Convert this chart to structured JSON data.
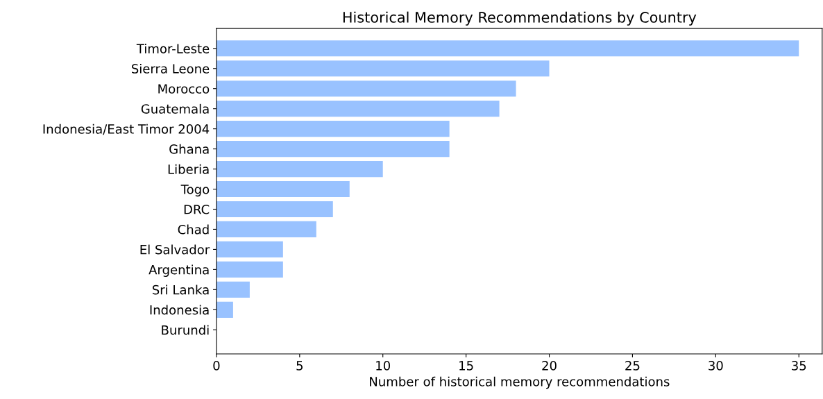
{
  "chart_data": {
    "type": "bar",
    "orientation": "horizontal",
    "title": "Historical Memory Recommendations by Country",
    "xlabel": "Number of historical memory recommendations",
    "categories": [
      "Timor-Leste",
      "Sierra Leone",
      "Morocco",
      "Guatemala",
      "Indonesia/East Timor 2004",
      "Ghana",
      "Liberia",
      "Togo",
      "DRC",
      "Chad",
      "El Salvador",
      "Argentina",
      "Sri Lanka",
      "Indonesia",
      "Burundi"
    ],
    "values": [
      35,
      20,
      18,
      17,
      14,
      14,
      10,
      8,
      7,
      6,
      4,
      4,
      2,
      1,
      0
    ],
    "color": "#99c2ff",
    "xlim": [
      0,
      36.4
    ],
    "xticks": [
      0,
      5,
      10,
      15,
      20,
      25,
      30,
      35
    ],
    "grid": false,
    "legend": false
  }
}
